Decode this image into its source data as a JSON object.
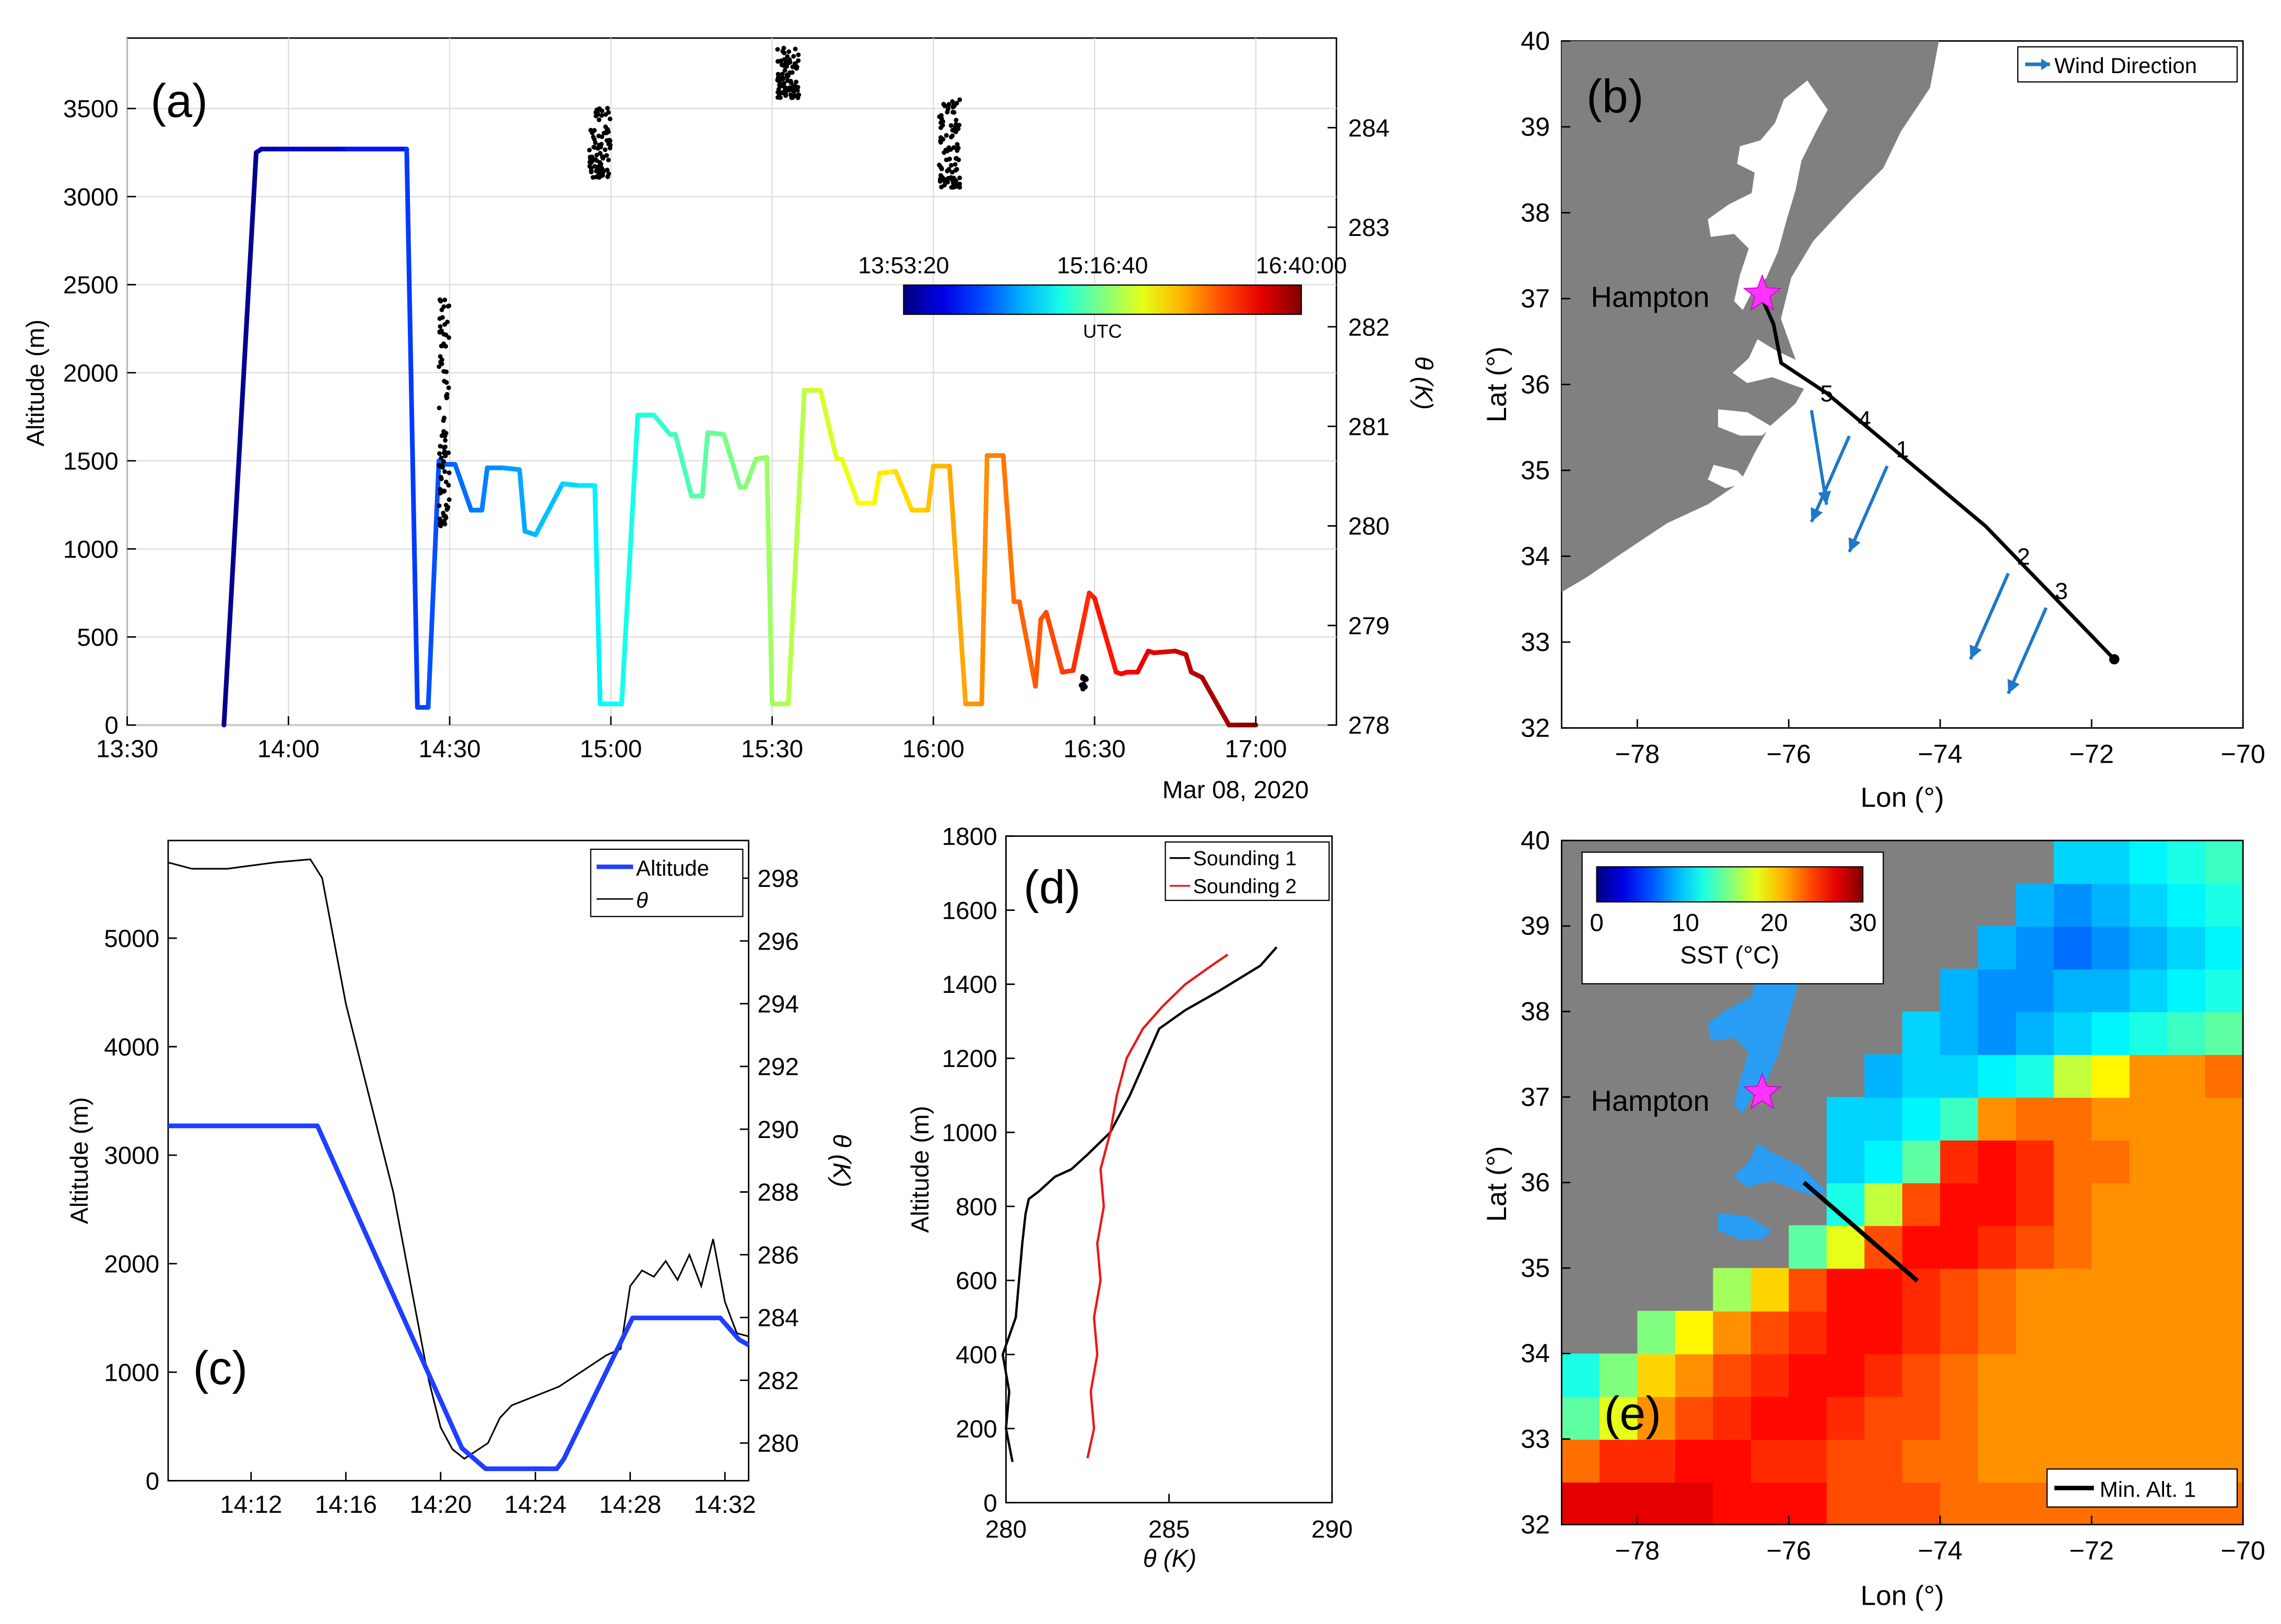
{
  "figure": {
    "panels": [
      {
        "id": "a",
        "label": "(a)"
      },
      {
        "id": "b",
        "label": "(b)"
      },
      {
        "id": "c",
        "label": "(c)"
      },
      {
        "id": "d",
        "label": "(d)"
      },
      {
        "id": "e",
        "label": "(e)"
      }
    ]
  },
  "chart_data": [
    {
      "panel": "a",
      "type": "line",
      "ylabel": "Altitude (m)",
      "y2label": "θ (K)",
      "date_label": "Mar 08, 2020",
      "x_ticks": [
        "13:30",
        "14:00",
        "14:30",
        "15:00",
        "15:30",
        "16:00",
        "16:30",
        "17:00"
      ],
      "x_range_min": [
        810,
        1035
      ],
      "y_ticks": [
        0,
        500,
        1000,
        1500,
        2000,
        2500,
        3000,
        3500
      ],
      "ylim": [
        0,
        3900
      ],
      "y2_ticks": [
        278,
        279,
        280,
        281,
        282,
        283,
        284
      ],
      "y2lim": [
        278,
        284.9
      ],
      "colorbar": {
        "label": "UTC",
        "ticks": [
          "13:53:20",
          "15:16:40",
          "16:40:00"
        ],
        "colormap": "jet"
      },
      "altitude_track": {
        "t_min": [
          828,
          834,
          835,
          838,
          850,
          851,
          862,
          864,
          866,
          868,
          869,
          871,
          874,
          876,
          877,
          880,
          883,
          884,
          886,
          891,
          894,
          897,
          898,
          902,
          905,
          908,
          911,
          912,
          915,
          917,
          918,
          921,
          924,
          925,
          927,
          929,
          930,
          933,
          936,
          939,
          942,
          943,
          946,
          949,
          950,
          953,
          956,
          959,
          960,
          963,
          966,
          969,
          970,
          973,
          975,
          976,
          979,
          980,
          981,
          984,
          986,
          989,
          990,
          994,
          995,
          996,
          998,
          1000,
          1001,
          1005,
          1007,
          1008,
          1010,
          1015,
          1017,
          1018,
          1020
        ],
        "alt_m": [
          0,
          3250,
          3270,
          3270,
          3270,
          3270,
          3270,
          100,
          100,
          1500,
          1480,
          1480,
          1220,
          1220,
          1460,
          1460,
          1450,
          1100,
          1080,
          1370,
          1360,
          1360,
          120,
          120,
          1760,
          1760,
          1650,
          1650,
          1300,
          1300,
          1660,
          1650,
          1350,
          1350,
          1510,
          1520,
          120,
          120,
          1900,
          1900,
          1510,
          1510,
          1260,
          1260,
          1430,
          1440,
          1220,
          1220,
          1470,
          1470,
          120,
          120,
          1530,
          1530,
          700,
          700,
          220,
          600,
          640,
          300,
          310,
          750,
          720,
          300,
          290,
          300,
          300,
          420,
          410,
          420,
          400,
          300,
          270,
          0,
          0,
          0,
          0
        ]
      },
      "theta_clusters": [
        {
          "t_min": [
            868,
            870
          ],
          "theta_k": [
            280.0,
            282.3
          ]
        },
        {
          "t_min": [
            896,
            900
          ],
          "theta_k": [
            283.5,
            284.2
          ]
        },
        {
          "t_min": [
            931,
            935
          ],
          "theta_k": [
            284.3,
            284.8
          ]
        },
        {
          "t_min": [
            961,
            965
          ],
          "theta_k": [
            283.4,
            284.3
          ]
        }
      ]
    },
    {
      "panel": "b",
      "type": "map",
      "xlabel": "Lon (°)",
      "ylabel": "Lat (°)",
      "xlim": [
        -79,
        -70
      ],
      "ylim": [
        32,
        40
      ],
      "x_ticks": [
        -78,
        -76,
        -74,
        -72,
        -70
      ],
      "y_ticks": [
        32,
        33,
        34,
        35,
        36,
        37,
        38,
        39,
        40
      ],
      "x_tick_labels": [
        "−78",
        "−76",
        "−74",
        "−72",
        "−70"
      ],
      "legend": "Wind Direction",
      "location": {
        "name": "Hampton",
        "lon": -76.35,
        "lat": 37.05
      },
      "flight_track": {
        "lon": [
          -76.4,
          -76.2,
          -76.1,
          -75.5,
          -73.4,
          -71.7
        ],
        "lat": [
          37.1,
          36.7,
          36.25,
          35.9,
          34.35,
          32.8
        ]
      },
      "wind_vectors": [
        {
          "label": "5",
          "lon": -75.7,
          "lat": 35.7,
          "dlon": 0.2,
          "dlat": -1.1
        },
        {
          "label": "4",
          "lon": -75.2,
          "lat": 35.4,
          "dlon": -0.5,
          "dlat": -1.0
        },
        {
          "label": "1",
          "lon": -74.7,
          "lat": 35.05,
          "dlon": -0.5,
          "dlat": -1.0
        },
        {
          "label": "2",
          "lon": -73.1,
          "lat": 33.8,
          "dlon": -0.5,
          "dlat": -1.0
        },
        {
          "label": "3",
          "lon": -72.6,
          "lat": 33.4,
          "dlon": -0.5,
          "dlat": -1.0
        }
      ]
    },
    {
      "panel": "c",
      "type": "line",
      "ylabel": "Altitude (m)",
      "y2label": "θ (K)",
      "ylim": [
        0,
        5900
      ],
      "y_ticks": [
        0,
        1000,
        2000,
        3000,
        4000,
        5000
      ],
      "y2lim": [
        278.8,
        299.2
      ],
      "y2_ticks": [
        280,
        282,
        284,
        286,
        288,
        290,
        292,
        294,
        296,
        298
      ],
      "x_range_min": [
        848.5,
        873
      ],
      "x_ticks": [
        "14:12",
        "14:16",
        "14:20",
        "14:24",
        "14:28",
        "14:32"
      ],
      "legend": [
        "Altitude",
        "θ"
      ],
      "series": [
        {
          "name": "Altitude",
          "color": "#1f3fff",
          "t_min": [
            848.5,
            854.8,
            860.9,
            861.9,
            864.9,
            865.2,
            868.1,
            871.8,
            872.6,
            873.0
          ],
          "alt_m": [
            3270,
            3270,
            300,
            110,
            110,
            200,
            1500,
            1500,
            1300,
            1250
          ]
        },
        {
          "name": "θ",
          "color": "#000000",
          "t_min": [
            848.5,
            849.5,
            851,
            853,
            854.5,
            855,
            856,
            857,
            858,
            859,
            859.5,
            860,
            860.5,
            861,
            862,
            862.5,
            863,
            864,
            865,
            866,
            867,
            867.6,
            868,
            868.5,
            869,
            869.5,
            870,
            870.5,
            871,
            871.5,
            872,
            872.5,
            873
          ],
          "theta_k": [
            298.5,
            298.3,
            298.3,
            298.5,
            298.6,
            298.0,
            294.0,
            291.0,
            288.0,
            284.0,
            282.0,
            280.5,
            279.8,
            279.5,
            280.0,
            280.8,
            281.2,
            281.5,
            281.8,
            282.3,
            282.8,
            283.0,
            285.0,
            285.5,
            285.3,
            285.8,
            285.2,
            286.0,
            285.0,
            286.5,
            284.5,
            283.5,
            283.4
          ]
        }
      ]
    },
    {
      "panel": "d",
      "type": "line",
      "xlabel": "θ (K)",
      "ylabel": "Altitude (m)",
      "xlim": [
        280,
        290
      ],
      "x_ticks": [
        280,
        285,
        290
      ],
      "ylim": [
        0,
        1800
      ],
      "y_ticks": [
        0,
        200,
        400,
        600,
        800,
        1000,
        1200,
        1400,
        1600,
        1800
      ],
      "legend": [
        "Sounding 1",
        "Sounding 2"
      ],
      "series": [
        {
          "name": "Sounding 1",
          "color": "#000000",
          "theta_k": [
            280.2,
            280.0,
            280.1,
            279.9,
            280.3,
            280.4,
            280.5,
            280.6,
            280.7,
            281.0,
            281.5,
            282.0,
            282.5,
            283.2,
            283.8,
            284.3,
            284.7,
            285.5,
            286.5,
            287.8,
            288.3
          ],
          "alt_m": [
            110,
            200,
            300,
            400,
            500,
            600,
            700,
            780,
            820,
            840,
            880,
            900,
            940,
            1000,
            1100,
            1200,
            1280,
            1330,
            1380,
            1450,
            1500
          ]
        },
        {
          "name": "Sounding 2",
          "color": "#e8191a",
          "theta_k": [
            282.5,
            282.7,
            282.6,
            282.8,
            282.7,
            282.9,
            282.8,
            283.0,
            282.9,
            283.2,
            283.4,
            283.7,
            284.2,
            284.8,
            285.5,
            286.3,
            286.8
          ],
          "alt_m": [
            120,
            200,
            300,
            400,
            500,
            600,
            700,
            800,
            900,
            1000,
            1100,
            1200,
            1280,
            1340,
            1400,
            1450,
            1480
          ]
        }
      ]
    },
    {
      "panel": "e",
      "type": "heatmap",
      "xlabel": "Lon (°)",
      "ylabel": "Lat (°)",
      "xlim": [
        -79,
        -70
      ],
      "ylim": [
        32,
        40
      ],
      "x_ticks": [
        -78,
        -76,
        -74,
        -72,
        -70
      ],
      "y_ticks": [
        32,
        33,
        34,
        35,
        36,
        37,
        38,
        39,
        40
      ],
      "x_tick_labels": [
        "−78",
        "−76",
        "−74",
        "−72",
        "−70"
      ],
      "colorbar": {
        "label": "SST (°C)",
        "ticks": [
          0,
          10,
          20,
          30
        ],
        "range": [
          0,
          30
        ],
        "colormap": "jet"
      },
      "legend": "Min. Alt. 1",
      "location": {
        "name": "Hampton",
        "lon": -76.35,
        "lat": 37.05
      },
      "min_alt_track": {
        "lon": [
          -75.8,
          -74.3
        ],
        "lat": [
          36.0,
          34.85
        ]
      },
      "grid": {
        "lon0": -79.0,
        "lat0": 32.0,
        "dlon": 0.5,
        "dlat": 0.5,
        "rows_south_to_north": [
          [
            27,
            27,
            27,
            27,
            26,
            26,
            26,
            24,
            24,
            24,
            23,
            23,
            23,
            23,
            23,
            23,
            23,
            23
          ],
          [
            23,
            25,
            25,
            26,
            26,
            25,
            25,
            24,
            24,
            23,
            23,
            22,
            22,
            22,
            22,
            22,
            22,
            22
          ],
          [
            14,
            18,
            22,
            24,
            25,
            26,
            26,
            25,
            24,
            24,
            23,
            22,
            22,
            22,
            22,
            22,
            22,
            22
          ],
          [
            12,
            15,
            20,
            22,
            24,
            25,
            26,
            26,
            25,
            24,
            23,
            22,
            22,
            22,
            22,
            22,
            22,
            22
          ],
          [
            null,
            null,
            15,
            19,
            22,
            24,
            25,
            26,
            26,
            25,
            24,
            23,
            22,
            22,
            22,
            22,
            22,
            22
          ],
          [
            null,
            null,
            null,
            null,
            16,
            20,
            24,
            26,
            26,
            25,
            24,
            23,
            22,
            22,
            22,
            22,
            22,
            22
          ],
          [
            null,
            null,
            null,
            null,
            null,
            null,
            14,
            18,
            24,
            26,
            26,
            25,
            24,
            23,
            22,
            22,
            22,
            22
          ],
          [
            null,
            null,
            null,
            null,
            null,
            null,
            null,
            12,
            17,
            24,
            26,
            26,
            25,
            23,
            22,
            22,
            22,
            22
          ],
          [
            null,
            null,
            null,
            null,
            null,
            null,
            null,
            10,
            11,
            14,
            25,
            26,
            25,
            23,
            23,
            22,
            22,
            22
          ],
          [
            null,
            null,
            null,
            null,
            null,
            null,
            null,
            10,
            10,
            11,
            13,
            22,
            23,
            23,
            22,
            22,
            22,
            22
          ],
          [
            null,
            null,
            null,
            null,
            null,
            null,
            null,
            null,
            9,
            10,
            10,
            11,
            12,
            17,
            19,
            22,
            22,
            23
          ],
          [
            null,
            null,
            null,
            null,
            null,
            null,
            null,
            null,
            null,
            10,
            9,
            8,
            9,
            10,
            11,
            12,
            13,
            14
          ],
          [
            null,
            null,
            null,
            null,
            null,
            null,
            null,
            null,
            null,
            null,
            9,
            8,
            8,
            9,
            9,
            10,
            11,
            12
          ],
          [
            null,
            null,
            null,
            null,
            null,
            null,
            null,
            null,
            null,
            null,
            null,
            9,
            8,
            7,
            8,
            9,
            10,
            11
          ],
          [
            null,
            null,
            null,
            null,
            null,
            null,
            null,
            null,
            null,
            null,
            null,
            null,
            9,
            8,
            9,
            10,
            11,
            12
          ],
          [
            null,
            null,
            null,
            null,
            null,
            null,
            null,
            null,
            null,
            null,
            null,
            null,
            null,
            10,
            10,
            11,
            12,
            13
          ]
        ]
      }
    }
  ]
}
